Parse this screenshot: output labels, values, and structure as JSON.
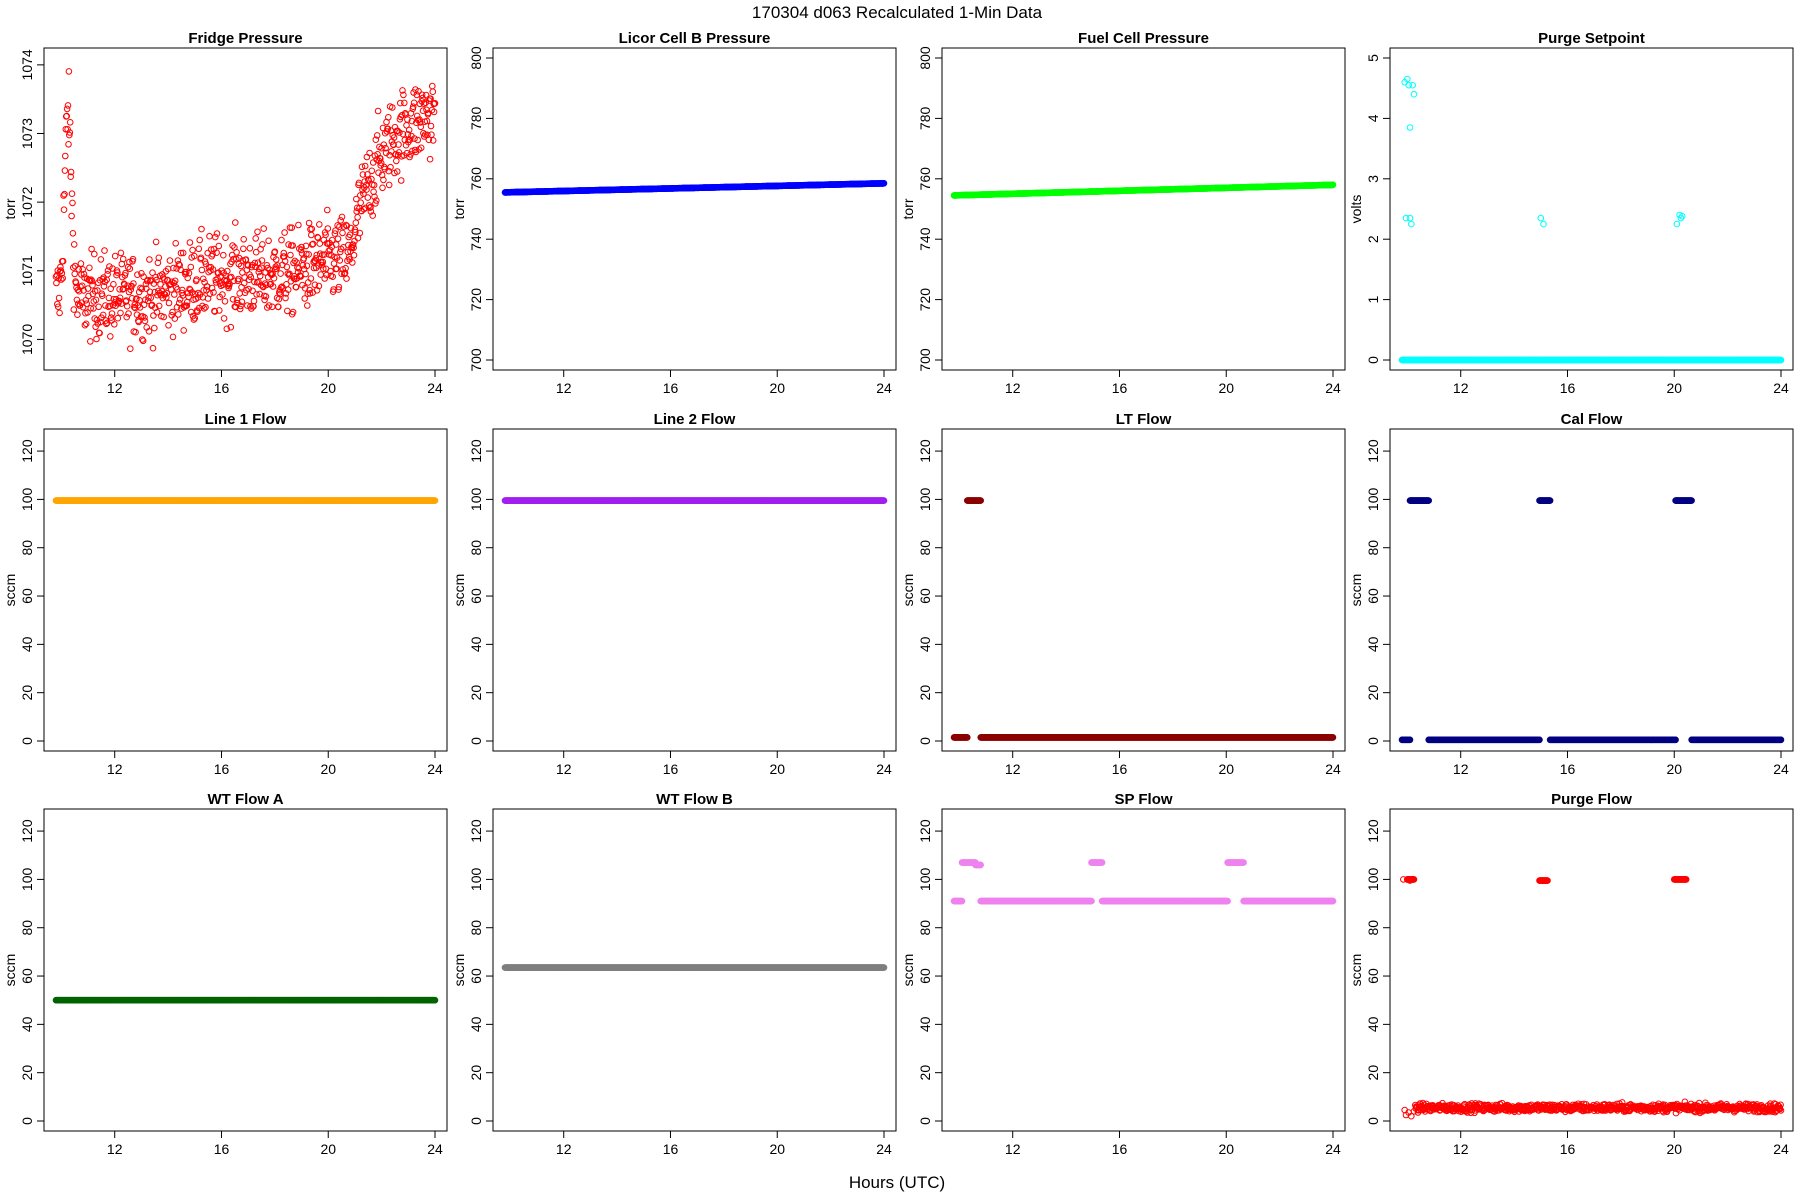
{
  "figure": {
    "main_title": "170304   d063   Recalculated 1-Min Data",
    "xlabel": "Hours (UTC)"
  },
  "chart_data": [
    {
      "type": "scatter",
      "title": "Fridge Pressure",
      "ylabel": "torr",
      "color": "#ff0000",
      "xlim": [
        9.8,
        24
      ],
      "ylim": [
        1069.7,
        1074.1
      ],
      "xticks": [
        12,
        16,
        20,
        24
      ],
      "yticks": [
        1070,
        1071,
        1072,
        1073,
        1074
      ],
      "series": [
        {
          "model": "fridge",
          "x_range": [
            9.8,
            24
          ],
          "noise": 0.38
        }
      ]
    },
    {
      "type": "scatter",
      "title": "Licor Cell B Pressure",
      "ylabel": "torr",
      "color": "#0000ff",
      "xlim": [
        9.8,
        24
      ],
      "ylim": [
        700,
        800
      ],
      "xticks": [
        12,
        16,
        20,
        24
      ],
      "yticks": [
        700,
        720,
        740,
        760,
        780,
        800
      ],
      "series": [
        {
          "model": "linear",
          "x_range": [
            9.8,
            24
          ],
          "y_start": 755.5,
          "y_end": 758.5
        }
      ]
    },
    {
      "type": "scatter",
      "title": "Fuel Cell Pressure",
      "ylabel": "torr",
      "color": "#00ff00",
      "xlim": [
        9.8,
        24
      ],
      "ylim": [
        700,
        800
      ],
      "xticks": [
        12,
        16,
        20,
        24
      ],
      "yticks": [
        700,
        720,
        740,
        760,
        780,
        800
      ],
      "series": [
        {
          "model": "linear",
          "x_range": [
            9.8,
            24
          ],
          "y_start": 754.5,
          "y_end": 758.0
        }
      ]
    },
    {
      "type": "scatter",
      "title": "Purge Setpoint",
      "ylabel": "volts",
      "color": "#00ffff",
      "xlim": [
        9.8,
        24
      ],
      "ylim": [
        0,
        5
      ],
      "xticks": [
        12,
        16,
        20,
        24
      ],
      "yticks": [
        0,
        1,
        2,
        3,
        4,
        5
      ],
      "series": [
        {
          "model": "constant",
          "x_range": [
            9.8,
            24
          ],
          "y": 0
        },
        {
          "model": "points",
          "x": [
            9.9,
            10.0,
            10.05,
            10.1,
            10.2,
            10.25,
            9.95,
            10.1,
            10.15,
            15.0,
            15.1,
            20.1,
            20.2,
            20.3,
            20.25
          ],
          "y": [
            4.6,
            4.65,
            4.55,
            3.85,
            4.55,
            4.4,
            2.35,
            2.35,
            2.25,
            2.35,
            2.25,
            2.25,
            2.4,
            2.38,
            2.35
          ]
        }
      ]
    },
    {
      "type": "scatter",
      "title": "Line 1 Flow",
      "ylabel": "sccm",
      "color": "#ffa500",
      "xlim": [
        9.8,
        24
      ],
      "ylim": [
        0,
        125
      ],
      "xticks": [
        12,
        16,
        20,
        24
      ],
      "yticks": [
        0,
        20,
        40,
        60,
        80,
        100,
        120
      ],
      "series": [
        {
          "model": "constant",
          "x_range": [
            9.8,
            24
          ],
          "y": 99.5
        }
      ]
    },
    {
      "type": "scatter",
      "title": "Line 2 Flow",
      "ylabel": "sccm",
      "color": "#a020f0",
      "xlim": [
        9.8,
        24
      ],
      "ylim": [
        0,
        125
      ],
      "xticks": [
        12,
        16,
        20,
        24
      ],
      "yticks": [
        0,
        20,
        40,
        60,
        80,
        100,
        120
      ],
      "series": [
        {
          "model": "constant",
          "x_range": [
            9.8,
            24
          ],
          "y": 99.5
        }
      ]
    },
    {
      "type": "scatter",
      "title": "LT Flow",
      "ylabel": "sccm",
      "color": "#8b0000",
      "xlim": [
        9.8,
        24
      ],
      "ylim": [
        0,
        125
      ],
      "xticks": [
        12,
        16,
        20,
        24
      ],
      "yticks": [
        0,
        20,
        40,
        60,
        80,
        100,
        120
      ],
      "series": [
        {
          "model": "constant",
          "x_range": [
            9.8,
            10.3
          ],
          "y": 1.5
        },
        {
          "model": "constant",
          "x_range": [
            10.3,
            10.8
          ],
          "y": 99.5
        },
        {
          "model": "constant",
          "x_range": [
            10.8,
            24
          ],
          "y": 1.5
        }
      ]
    },
    {
      "type": "scatter",
      "title": "Cal Flow",
      "ylabel": "sccm",
      "color": "#000080",
      "xlim": [
        9.8,
        24
      ],
      "ylim": [
        0,
        125
      ],
      "xticks": [
        12,
        16,
        20,
        24
      ],
      "yticks": [
        0,
        20,
        40,
        60,
        80,
        100,
        120
      ],
      "series": [
        {
          "model": "constant",
          "x_range": [
            9.8,
            10.1
          ],
          "y": 0.5
        },
        {
          "model": "constant",
          "x_range": [
            10.1,
            10.8
          ],
          "y": 99.5
        },
        {
          "model": "constant",
          "x_range": [
            10.8,
            14.95
          ],
          "y": 0.5
        },
        {
          "model": "constant",
          "x_range": [
            14.95,
            15.35
          ],
          "y": 99.5
        },
        {
          "model": "constant",
          "x_range": [
            15.35,
            20.05
          ],
          "y": 0.5
        },
        {
          "model": "constant",
          "x_range": [
            20.05,
            20.65
          ],
          "y": 99.5
        },
        {
          "model": "constant",
          "x_range": [
            20.65,
            24
          ],
          "y": 0.5
        }
      ]
    },
    {
      "type": "scatter",
      "title": "WT Flow A",
      "ylabel": "sccm",
      "color": "#006400",
      "xlim": [
        9.8,
        24
      ],
      "ylim": [
        0,
        125
      ],
      "xticks": [
        12,
        16,
        20,
        24
      ],
      "yticks": [
        0,
        20,
        40,
        60,
        80,
        100,
        120
      ],
      "series": [
        {
          "model": "constant",
          "x_range": [
            9.8,
            24
          ],
          "y": 50
        }
      ]
    },
    {
      "type": "scatter",
      "title": "WT Flow B",
      "ylabel": "sccm",
      "color": "#7f7f7f",
      "xlim": [
        9.8,
        24
      ],
      "ylim": [
        0,
        125
      ],
      "xticks": [
        12,
        16,
        20,
        24
      ],
      "yticks": [
        0,
        20,
        40,
        60,
        80,
        100,
        120
      ],
      "series": [
        {
          "model": "constant",
          "x_range": [
            9.8,
            24
          ],
          "y": 63.5
        }
      ]
    },
    {
      "type": "scatter",
      "title": "SP Flow",
      "ylabel": "sccm",
      "color": "#ee82ee",
      "xlim": [
        9.8,
        24
      ],
      "ylim": [
        0,
        125
      ],
      "xticks": [
        12,
        16,
        20,
        24
      ],
      "yticks": [
        0,
        20,
        40,
        60,
        80,
        100,
        120
      ],
      "series": [
        {
          "model": "constant",
          "x_range": [
            9.8,
            10.1
          ],
          "y": 91
        },
        {
          "model": "constant",
          "x_range": [
            10.1,
            10.6
          ],
          "y": 107
        },
        {
          "model": "constant",
          "x_range": [
            10.6,
            10.8
          ],
          "y": 106
        },
        {
          "model": "constant",
          "x_range": [
            10.8,
            14.95
          ],
          "y": 91
        },
        {
          "model": "constant",
          "x_range": [
            14.95,
            15.35
          ],
          "y": 107
        },
        {
          "model": "constant",
          "x_range": [
            15.35,
            20.05
          ],
          "y": 91
        },
        {
          "model": "constant",
          "x_range": [
            20.05,
            20.65
          ],
          "y": 107
        },
        {
          "model": "constant",
          "x_range": [
            20.65,
            24
          ],
          "y": 91
        }
      ]
    },
    {
      "type": "scatter",
      "title": "Purge Flow",
      "ylabel": "sccm",
      "color": "#ff0000",
      "xlim": [
        9.8,
        24
      ],
      "ylim": [
        0,
        125
      ],
      "xticks": [
        12,
        16,
        20,
        24
      ],
      "yticks": [
        0,
        20,
        40,
        60,
        80,
        100,
        120
      ],
      "series": [
        {
          "model": "points",
          "x": [
            9.9,
            9.95,
            10.05,
            10.15,
            10.25,
            9.85,
            10.0,
            10.1
          ],
          "y": [
            4.5,
            2.5,
            3.5,
            2.0,
            4.0,
            100,
            100,
            99.5
          ]
        },
        {
          "model": "constant",
          "x_range": [
            10.0,
            10.25
          ],
          "y": 100
        },
        {
          "model": "noisy",
          "x_range": [
            10.3,
            24
          ],
          "y": 5.5,
          "noise": 1.4
        },
        {
          "model": "constant",
          "x_range": [
            14.95,
            15.25
          ],
          "y": 99.5
        },
        {
          "model": "constant",
          "x_range": [
            20.0,
            20.45
          ],
          "y": 100
        }
      ]
    }
  ]
}
